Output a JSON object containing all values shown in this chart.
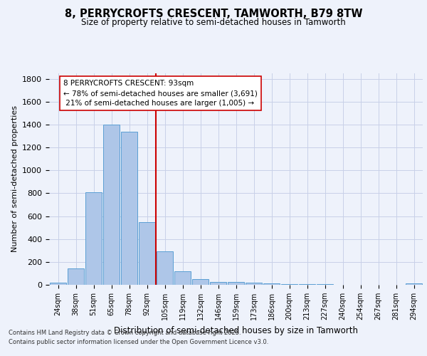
{
  "title_line1": "8, PERRYCROFTS CRESCENT, TAMWORTH, B79 8TW",
  "title_line2": "Size of property relative to semi-detached houses in Tamworth",
  "xlabel": "Distribution of semi-detached houses by size in Tamworth",
  "ylabel": "Number of semi-detached properties",
  "categories": [
    "24sqm",
    "38sqm",
    "51sqm",
    "65sqm",
    "78sqm",
    "92sqm",
    "105sqm",
    "119sqm",
    "132sqm",
    "146sqm",
    "159sqm",
    "173sqm",
    "186sqm",
    "200sqm",
    "213sqm",
    "227sqm",
    "240sqm",
    "254sqm",
    "267sqm",
    "281sqm",
    "294sqm"
  ],
  "bar_heights": [
    20,
    145,
    810,
    1400,
    1335,
    550,
    295,
    120,
    50,
    25,
    25,
    20,
    10,
    5,
    5,
    5,
    0,
    0,
    0,
    0,
    15
  ],
  "bar_color": "#aec6e8",
  "bar_edge_color": "#5a9fd4",
  "vline_x": 5.5,
  "vline_color": "#cc0000",
  "annotation_text": "8 PERRYCROFTS CRESCENT: 93sqm\n← 78% of semi-detached houses are smaller (3,691)\n 21% of semi-detached houses are larger (1,005) →",
  "ylim": [
    0,
    1850
  ],
  "yticks": [
    0,
    200,
    400,
    600,
    800,
    1000,
    1200,
    1400,
    1600,
    1800
  ],
  "footer_line1": "Contains HM Land Registry data © Crown copyright and database right 2025.",
  "footer_line2": "Contains public sector information licensed under the Open Government Licence v3.0.",
  "background_color": "#eef2fb",
  "grid_color": "#c8d0e8"
}
